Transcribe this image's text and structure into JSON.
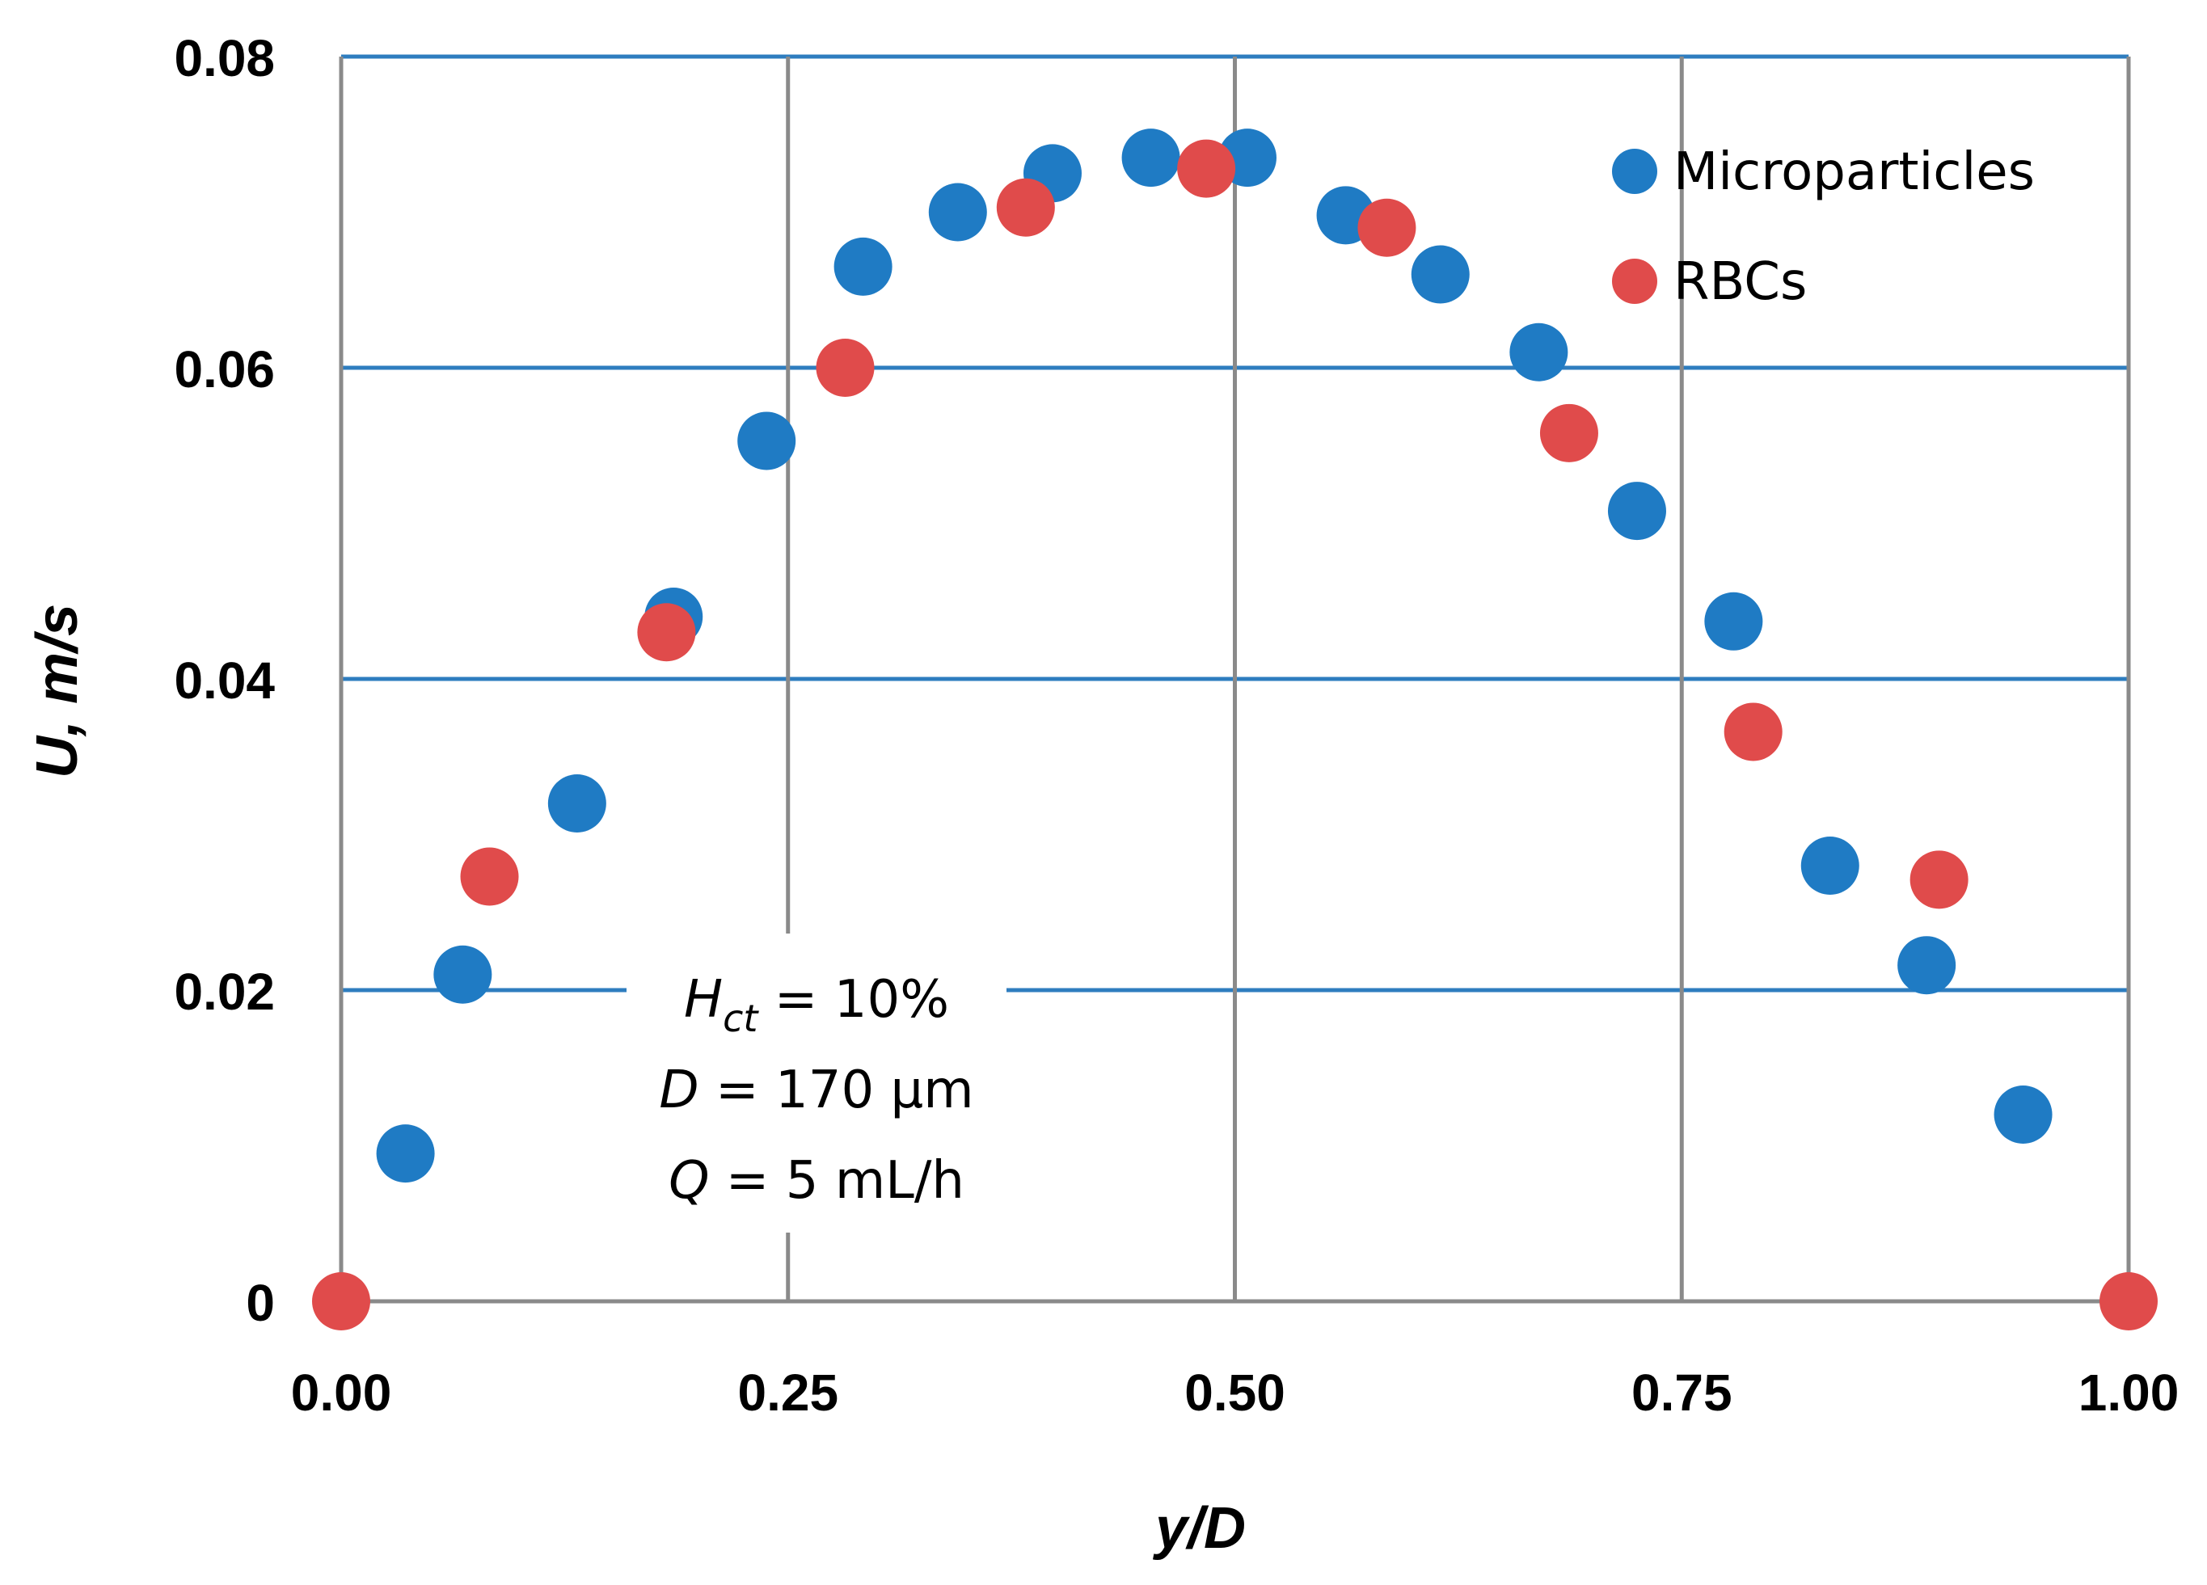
{
  "chart_data": {
    "type": "scatter",
    "title": "",
    "xlabel": "y/D",
    "ylabel": "U, m/s",
    "xlim": [
      0,
      1
    ],
    "ylim": [
      0,
      0.08
    ],
    "x_ticks": [
      0,
      0.25,
      0.5,
      0.75,
      1.0
    ],
    "x_tick_labels": [
      "0.00",
      "0.25",
      "0.50",
      "0.75",
      "1.00"
    ],
    "y_ticks": [
      0,
      0.02,
      0.04,
      0.06,
      0.08
    ],
    "y_tick_labels": [
      "0",
      "0.02",
      "0.04",
      "0.06",
      "0.08"
    ],
    "grid": true,
    "legend_position": "top-right",
    "series": [
      {
        "name": "Microparticles",
        "color": "#1f7bc4",
        "points": [
          [
            0.036,
            0.0095
          ],
          [
            0.068,
            0.021
          ],
          [
            0.132,
            0.032
          ],
          [
            0.186,
            0.044
          ],
          [
            0.238,
            0.0553
          ],
          [
            0.292,
            0.0665
          ],
          [
            0.345,
            0.07
          ],
          [
            0.398,
            0.0725
          ],
          [
            0.453,
            0.0735
          ],
          [
            0.507,
            0.0735
          ],
          [
            0.562,
            0.0698
          ],
          [
            0.615,
            0.066
          ],
          [
            0.67,
            0.061
          ],
          [
            0.725,
            0.0508
          ],
          [
            0.779,
            0.0437
          ],
          [
            0.833,
            0.028
          ],
          [
            0.887,
            0.0216
          ],
          [
            0.941,
            0.012
          ]
        ]
      },
      {
        "name": "RBCs",
        "color": "#e04b4b",
        "points": [
          [
            0.0,
            0.0
          ],
          [
            0.083,
            0.0273
          ],
          [
            0.182,
            0.043
          ],
          [
            0.282,
            0.06
          ],
          [
            0.383,
            0.0703
          ],
          [
            0.484,
            0.0728
          ],
          [
            0.585,
            0.069
          ],
          [
            0.687,
            0.0558
          ],
          [
            0.79,
            0.0366
          ],
          [
            0.894,
            0.0271
          ],
          [
            1.0,
            0.0
          ]
        ]
      }
    ],
    "annotation": {
      "hct_symbol": "H",
      "hct_subscript": "ct",
      "hct_value": " = 10%",
      "d_symbol": "D",
      "d_value": " = 170 µm",
      "q_symbol": "Q",
      "q_value": " = 5 mL/h"
    },
    "styling": {
      "hgrid_color": "#2e7dbf",
      "vgrid_color": "#8a8a8a"
    }
  }
}
